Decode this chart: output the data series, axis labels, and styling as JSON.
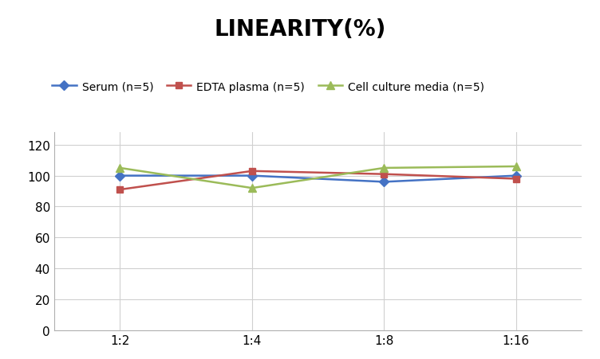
{
  "title": "LINEARITY(%)",
  "x_labels": [
    "1:2",
    "1:4",
    "1:8",
    "1:16"
  ],
  "x_positions": [
    0,
    1,
    2,
    3
  ],
  "series": [
    {
      "label": "Serum (n=5)",
      "values": [
        100,
        100,
        96,
        100
      ],
      "color": "#4472C4",
      "marker": "D",
      "markersize": 6
    },
    {
      "label": "EDTA plasma (n=5)",
      "values": [
        91,
        103,
        101,
        98
      ],
      "color": "#C0504D",
      "marker": "s",
      "markersize": 6
    },
    {
      "label": "Cell culture media (n=5)",
      "values": [
        105,
        92,
        105,
        106
      ],
      "color": "#9BBB59",
      "marker": "^",
      "markersize": 7
    }
  ],
  "ylim": [
    0,
    128
  ],
  "yticks": [
    0,
    20,
    40,
    60,
    80,
    100,
    120
  ],
  "title_fontsize": 20,
  "legend_fontsize": 10,
  "tick_fontsize": 11,
  "background_color": "#ffffff",
  "grid_color": "#d0d0d0",
  "linewidth": 1.8
}
